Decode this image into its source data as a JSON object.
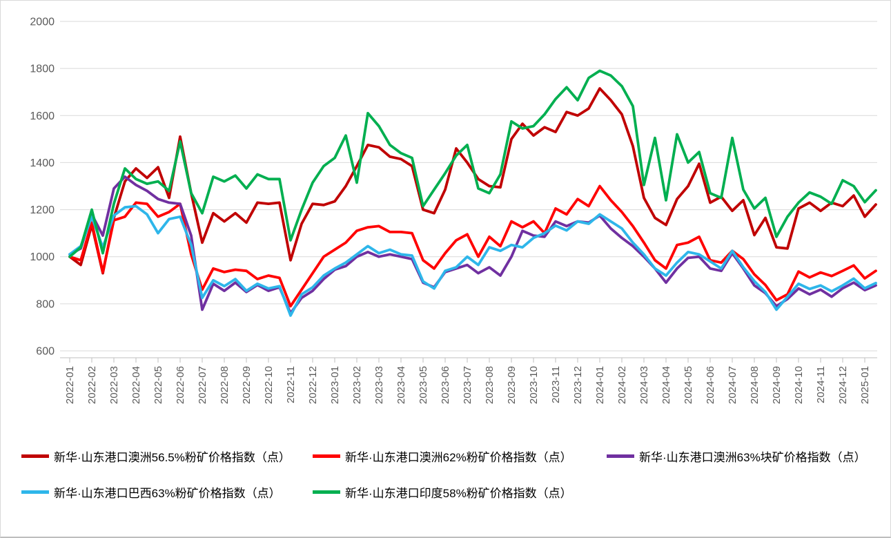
{
  "chart_data": {
    "type": "line",
    "title": "",
    "xlabel": "",
    "ylabel": "",
    "ylim": [
      600,
      2000
    ],
    "y_step": 200,
    "y_tick_labels": [
      "2000",
      "1800",
      "1600",
      "1400",
      "1200",
      "1000",
      "800",
      "600"
    ],
    "x_tick_labels": [
      "2022-01",
      "2022-02",
      "2022-03",
      "2022-04",
      "2022-05",
      "2022-06",
      "2022-07",
      "2022-08",
      "2022-09",
      "2022-10",
      "2022-11",
      "2022-12",
      "2023-01",
      "2023-02",
      "2023-03",
      "2023-04",
      "2023-05",
      "2023-06",
      "2023-07",
      "2023-08",
      "2023-09",
      "2023-10",
      "2023-11",
      "2023-12",
      "2024-01",
      "2024-02",
      "2024-03",
      "2024-04",
      "2024-05",
      "2024-06",
      "2024-07",
      "2024-08",
      "2024-09",
      "2024-10",
      "2024-11",
      "2024-12",
      "2025-01"
    ],
    "points_per_month": 2,
    "grid": true,
    "legend_position": "bottom",
    "grid_color": "#d9d9d9",
    "axis_color": "#bfbfbf",
    "axis_text_color": "#595959",
    "series": [
      {
        "name": "新华·山东港口澳洲56.5%粉矿价格指数（点）",
        "color": "#c00000",
        "values": [
          1000,
          965,
          1135,
          930,
          1165,
          1320,
          1375,
          1335,
          1380,
          1250,
          1510,
          1270,
          1060,
          1185,
          1150,
          1185,
          1145,
          1230,
          1225,
          1230,
          985,
          1140,
          1225,
          1220,
          1235,
          1300,
          1385,
          1475,
          1465,
          1425,
          1415,
          1385,
          1200,
          1185,
          1285,
          1460,
          1400,
          1330,
          1300,
          1295,
          1500,
          1565,
          1515,
          1550,
          1530,
          1615,
          1600,
          1630,
          1715,
          1665,
          1605,
          1470,
          1250,
          1165,
          1135,
          1245,
          1300,
          1395,
          1230,
          1255,
          1195,
          1240,
          1092,
          1165,
          1040,
          1035,
          1205,
          1230,
          1195,
          1230,
          1215,
          1260,
          1170,
          1222
        ]
      },
      {
        "name": "新华·山东港口澳洲62%粉矿价格指数（点）",
        "color": "#ff0000",
        "values": [
          1000,
          985,
          1145,
          935,
          1155,
          1170,
          1230,
          1225,
          1170,
          1190,
          1225,
          1010,
          860,
          950,
          935,
          945,
          940,
          905,
          920,
          910,
          790,
          860,
          930,
          1000,
          1030,
          1060,
          1110,
          1125,
          1130,
          1105,
          1105,
          1100,
          985,
          950,
          1015,
          1070,
          1095,
          1000,
          1085,
          1045,
          1150,
          1125,
          1150,
          1100,
          1205,
          1180,
          1245,
          1215,
          1300,
          1240,
          1190,
          1130,
          1060,
          985,
          950,
          1050,
          1060,
          1085,
          985,
          975,
          1025,
          990,
          925,
          880,
          815,
          840,
          937,
          912,
          933,
          918,
          940,
          963,
          908,
          940
        ]
      },
      {
        "name": "新华·山东港口澳洲63%块矿价格指数（点）",
        "color": "#7030a0",
        "values": [
          1010,
          1035,
          1180,
          1090,
          1290,
          1340,
          1305,
          1280,
          1245,
          1230,
          1225,
          1090,
          775,
          885,
          855,
          890,
          850,
          880,
          855,
          870,
          760,
          825,
          855,
          905,
          945,
          960,
          1000,
          1020,
          1000,
          1010,
          1000,
          990,
          890,
          870,
          935,
          950,
          965,
          930,
          955,
          920,
          1000,
          1110,
          1090,
          1085,
          1150,
          1130,
          1150,
          1145,
          1175,
          1120,
          1080,
          1045,
          1000,
          950,
          890,
          950,
          995,
          1000,
          950,
          940,
          1015,
          950,
          878,
          845,
          790,
          820,
          865,
          840,
          860,
          830,
          866,
          890,
          858,
          878
        ]
      },
      {
        "name": "新华·山东港口巴西63%粉矿价格指数（点）",
        "color": "#2eb6ea",
        "values": [
          1010,
          1045,
          1170,
          1040,
          1175,
          1210,
          1215,
          1180,
          1100,
          1160,
          1170,
          1050,
          825,
          900,
          875,
          905,
          855,
          885,
          865,
          875,
          750,
          840,
          870,
          920,
          950,
          975,
          1010,
          1045,
          1015,
          1030,
          1010,
          1005,
          895,
          865,
          940,
          955,
          1000,
          965,
          1040,
          1025,
          1050,
          1040,
          1080,
          1100,
          1132,
          1112,
          1150,
          1140,
          1180,
          1150,
          1120,
          1060,
          1010,
          950,
          920,
          975,
          1020,
          1010,
          980,
          950,
          1025,
          955,
          896,
          850,
          775,
          830,
          885,
          863,
          878,
          853,
          878,
          907,
          866,
          888
        ]
      },
      {
        "name": "新华·山东港口印度58%粉矿价格指数（点）",
        "color": "#00af50",
        "values": [
          1000,
          1040,
          1200,
          1015,
          1225,
          1375,
          1330,
          1310,
          1320,
          1280,
          1490,
          1270,
          1185,
          1340,
          1320,
          1345,
          1290,
          1350,
          1330,
          1330,
          1070,
          1200,
          1315,
          1385,
          1420,
          1515,
          1315,
          1610,
          1555,
          1475,
          1440,
          1420,
          1215,
          1285,
          1355,
          1430,
          1475,
          1290,
          1270,
          1350,
          1575,
          1545,
          1555,
          1605,
          1670,
          1720,
          1665,
          1760,
          1790,
          1770,
          1725,
          1640,
          1305,
          1505,
          1240,
          1520,
          1400,
          1445,
          1270,
          1250,
          1505,
          1285,
          1205,
          1250,
          1085,
          1170,
          1230,
          1273,
          1255,
          1225,
          1325,
          1300,
          1232,
          1282
        ]
      }
    ]
  }
}
